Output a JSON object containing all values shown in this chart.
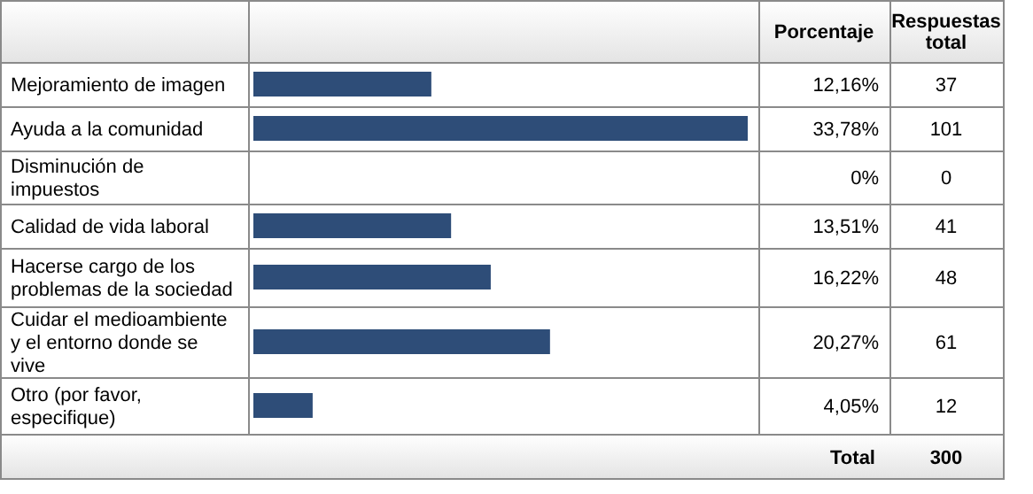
{
  "chart_data": [
    {
      "type": "bar",
      "orientation": "horizontal",
      "xlabel": "Porcentaje",
      "categories": [
        "Mejoramiento de imagen",
        "Ayuda a la comunidad",
        "Disminución de impuestos",
        "Calidad de vida laboral",
        "Hacerse cargo de los problemas de la sociedad",
        "Cuidar el medioambiente y el entorno donde se vive",
        "Otro (por favor, especifique)"
      ],
      "values": [
        12.16,
        33.78,
        0,
        13.51,
        16.22,
        20.27,
        4.05
      ],
      "value_labels": [
        "12,16%",
        "33,78%",
        "0%",
        "13,51%",
        "16,22%",
        "20,27%",
        "4,05%"
      ],
      "color": "#2e4d78"
    },
    {
      "type": "other",
      "xlabel": "Respuestas total",
      "categories": [
        null,
        null,
        null,
        null,
        null,
        null,
        null
      ],
      "values": [
        37,
        101,
        0,
        41,
        48,
        61,
        12
      ],
      "data_labels": true,
      "annotations": [
        "Total",
        "300"
      ]
    }
  ]
}
